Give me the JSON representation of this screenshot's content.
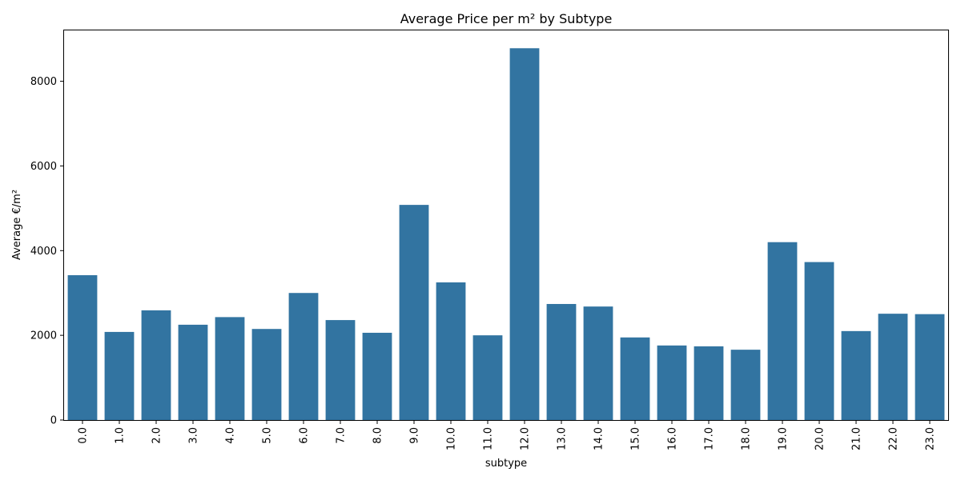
{
  "chart_data": {
    "type": "bar",
    "title": "Average Price per m² by Subtype",
    "xlabel": "subtype",
    "ylabel": "Average €/m²",
    "categories": [
      "0.0",
      "1.0",
      "2.0",
      "3.0",
      "4.0",
      "5.0",
      "6.0",
      "7.0",
      "8.0",
      "9.0",
      "10.0",
      "11.0",
      "12.0",
      "13.0",
      "14.0",
      "15.0",
      "16.0",
      "17.0",
      "18.0",
      "19.0",
      "20.0",
      "21.0",
      "22.0",
      "23.0"
    ],
    "values": [
      3420,
      2080,
      2590,
      2250,
      2430,
      2150,
      3000,
      2360,
      2060,
      5080,
      3250,
      2000,
      8780,
      2740,
      2680,
      1950,
      1760,
      1740,
      1660,
      4200,
      3730,
      2100,
      2510,
      2500
    ],
    "ylim": [
      0,
      9220
    ],
    "yticks": [
      0,
      2000,
      4000,
      6000,
      8000
    ],
    "grid": false,
    "bar_color": "#3274a1"
  }
}
